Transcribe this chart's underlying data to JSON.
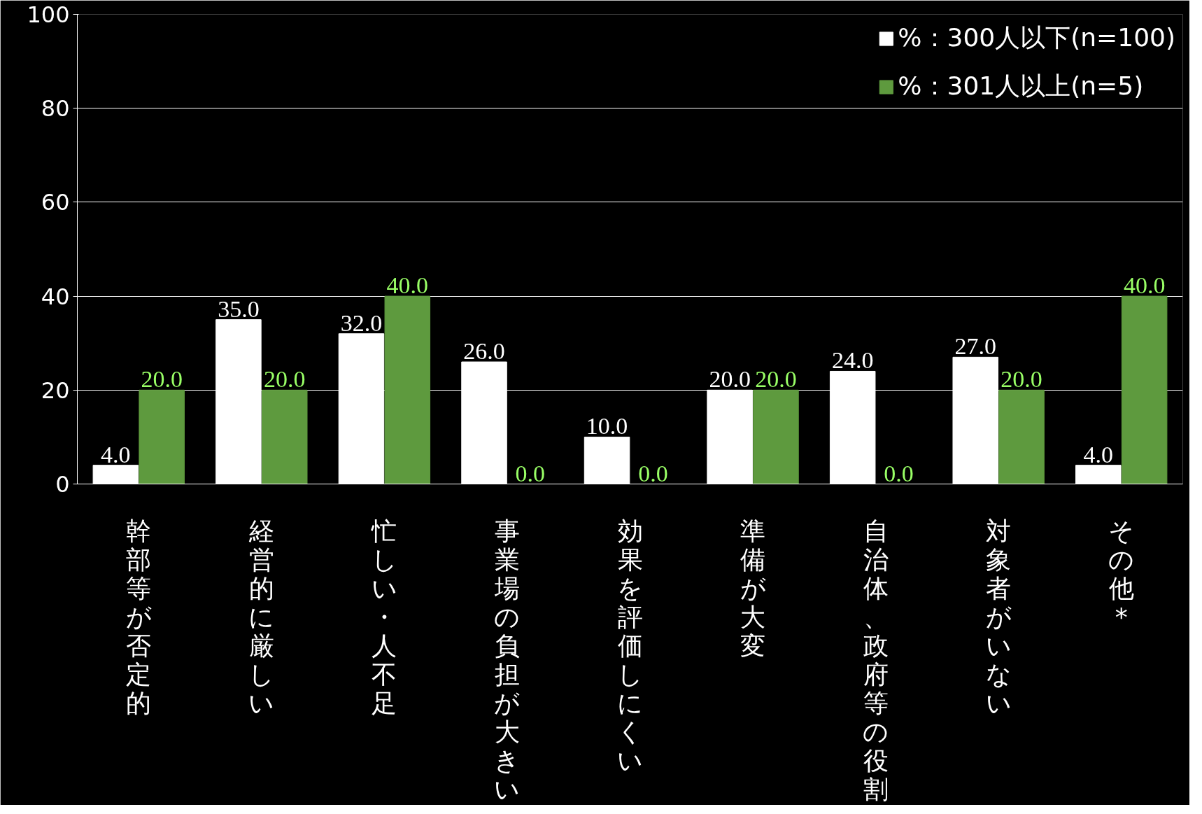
{
  "chart_data": {
    "type": "bar",
    "categories": [
      "幹部等が否定的",
      "経営的に厳しい",
      "忙しい・人不足",
      "事業場の負担が大きい",
      "効果を評価しにくい",
      "準備が大変",
      "自治体、政府等の役割",
      "対象者がいない",
      "その他*"
    ],
    "series": [
      {
        "name": "%：300人以下(n=100)",
        "color": "#ffffff",
        "values": [
          4,
          35,
          32,
          26,
          10,
          20,
          24,
          27,
          4
        ],
        "value_labels": [
          "4.0",
          "35.0",
          "32.0",
          "26.0",
          "10.0",
          "20.0",
          "24.0",
          "27.0",
          "4.0"
        ]
      },
      {
        "name": "%：301人以上(n=5)",
        "color": "#5e9a3e",
        "values": [
          20,
          20,
          40,
          0,
          0,
          20,
          0,
          20,
          40
        ],
        "value_labels": [
          "20.0",
          "20.0",
          "40.0",
          "0.0",
          "0.0",
          "20.0",
          "0.0",
          "20.0",
          "40.0"
        ]
      }
    ],
    "ylim": [
      0,
      100
    ],
    "yticks": [
      0,
      20,
      40,
      60,
      80,
      100
    ],
    "grid": "y",
    "legend": "top right"
  }
}
